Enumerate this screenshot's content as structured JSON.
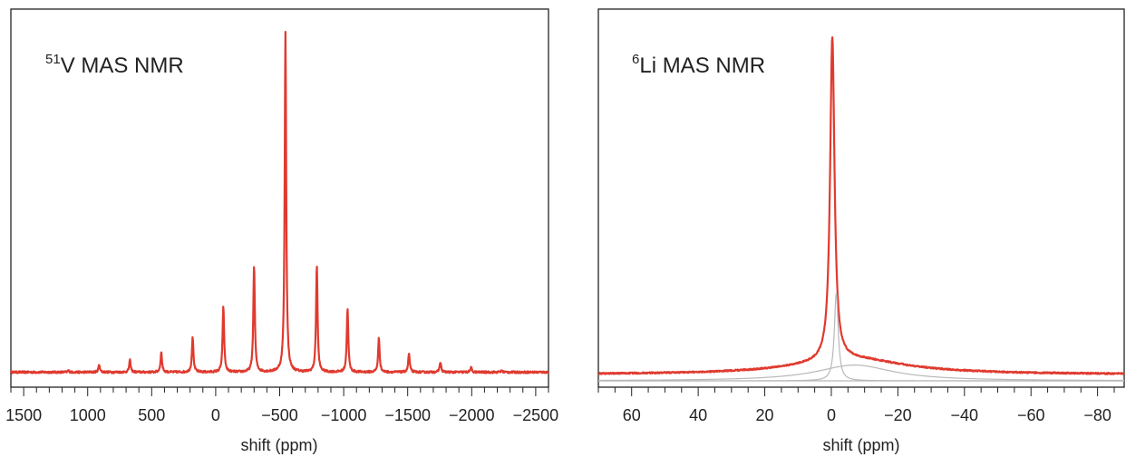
{
  "colors": {
    "spectrum": "#e03a2f",
    "components": "#b8b8b8",
    "axes": "#222222"
  },
  "chart_data": [
    {
      "type": "line",
      "title_sup": "51",
      "title_main": "V MAS NMR",
      "xlabel": "shift (ppm)",
      "ylabel": "",
      "xlim": [
        1600,
        -2600
      ],
      "x_reversed": true,
      "ylim": [
        0,
        1
      ],
      "y_ticks_shown": false,
      "grid": false,
      "major_ticks": [
        1500,
        1000,
        500,
        0,
        -500,
        -1000,
        -1500,
        -2000,
        -2500
      ],
      "tick_labels": [
        "1500",
        "1000",
        "500",
        "0",
        "−500",
        "−1000",
        "−1500",
        "−2000",
        "−2500"
      ],
      "minor_tick_step": 100,
      "baseline": 0.02,
      "peak_width_ppm": 7,
      "series": [
        {
          "style": "red",
          "peaks": [
            {
              "x": 1150,
              "y": 0.005
            },
            {
              "x": 910,
              "y": 0.022
            },
            {
              "x": 670,
              "y": 0.035
            },
            {
              "x": 425,
              "y": 0.058
            },
            {
              "x": 180,
              "y": 0.105
            },
            {
              "x": -60,
              "y": 0.195
            },
            {
              "x": -300,
              "y": 0.315
            },
            {
              "x": -545,
              "y": 1.0
            },
            {
              "x": -790,
              "y": 0.315
            },
            {
              "x": -1030,
              "y": 0.19
            },
            {
              "x": -1275,
              "y": 0.1
            },
            {
              "x": -1510,
              "y": 0.055
            },
            {
              "x": -1755,
              "y": 0.03
            },
            {
              "x": -1995,
              "y": 0.013
            },
            {
              "x": -2235,
              "y": 0.005
            }
          ]
        }
      ]
    },
    {
      "type": "line",
      "title_sup": "6",
      "title_main": "Li MAS NMR",
      "xlabel": "shift (ppm)",
      "ylabel": "",
      "xlim": [
        70,
        -88
      ],
      "x_reversed": true,
      "ylim": [
        0,
        1
      ],
      "y_ticks_shown": false,
      "grid": false,
      "major_ticks": [
        60,
        40,
        20,
        0,
        -20,
        -40,
        -60,
        -80
      ],
      "tick_labels": [
        "60",
        "40",
        "20",
        "0",
        "−20",
        "−40",
        "−60",
        "−80"
      ],
      "minor_tick_step": 5,
      "series": [
        {
          "style": "red",
          "components": [
            {
              "center": -0.3,
              "width": 0.8,
              "height": 0.92
            },
            {
              "center": -6,
              "width": 20,
              "height": 0.045
            }
          ],
          "offset": 0.018
        },
        {
          "style": "grey",
          "components": [
            {
              "center": -1.5,
              "width": 0.7,
              "height": 0.25
            }
          ],
          "offset": 0
        },
        {
          "style": "grey",
          "components": [
            {
              "center": -7,
              "width": 14,
              "height": 0.045
            }
          ],
          "offset": 0
        }
      ]
    }
  ]
}
